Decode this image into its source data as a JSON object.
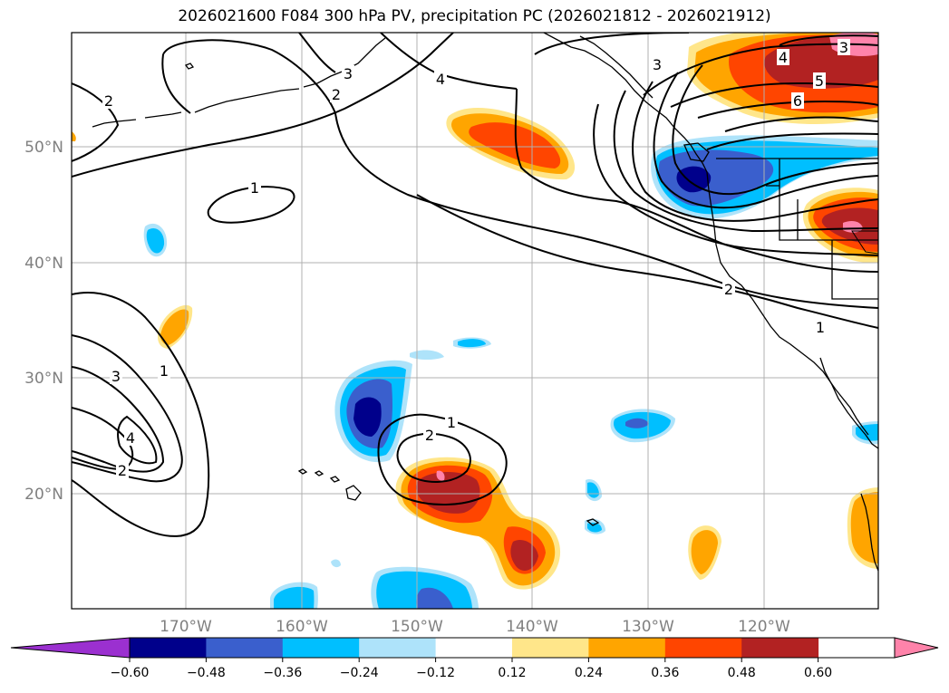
{
  "title": "2026021600 F084 300 hPa PV, precipitation PC (2026021812 - 2026021912)",
  "lat_labels": [
    "50°N",
    "40°N",
    "30°N",
    "20°N"
  ],
  "lon_labels": [
    "170°W",
    "160°W",
    "150°W",
    "140°W",
    "130°W",
    "120°W"
  ],
  "colorbar": {
    "ticks": [
      "−0.60",
      "−0.48",
      "−0.36",
      "−0.24",
      "−0.12",
      "0.12",
      "0.24",
      "0.36",
      "0.48",
      "0.60"
    ],
    "colors": [
      "#9b30d0",
      "#00008b",
      "#3a5fcd",
      "#00bfff",
      "#aee3fa",
      "#ffffff",
      "#ffe68a",
      "#ffa500",
      "#ff4500",
      "#b22222",
      "#ff83aa"
    ]
  },
  "contour_labels": [
    "2",
    "3",
    "4",
    "2",
    "1",
    "3",
    "4",
    "5",
    "6",
    "1",
    "2",
    "1",
    "3",
    "4",
    "2",
    "1",
    "2",
    "3"
  ],
  "colors": {
    "contour": "#000000",
    "grid": "#b0b0b0",
    "coast": "#000000"
  }
}
